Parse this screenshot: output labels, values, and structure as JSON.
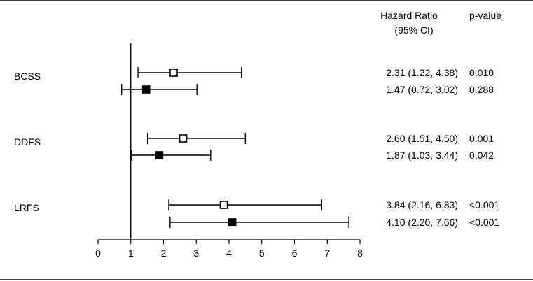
{
  "chart_data": {
    "type": "forest",
    "x_axis": {
      "ticks": [
        0,
        1,
        2,
        3,
        4,
        5,
        6,
        7,
        8
      ],
      "range": [
        0,
        8
      ],
      "reference_line": 1
    },
    "columns": {
      "hr_header_line1": "Hazard Ratio",
      "hr_header_line2": "(95% CI)",
      "p_header": "p-value"
    },
    "groups": [
      {
        "label": "BCSS",
        "rows": [
          {
            "marker": "open-square",
            "hr": 2.31,
            "ci_low": 1.22,
            "ci_high": 4.38,
            "hr_text": "2.31 (1.22, 4.38)",
            "p_text": "0.010"
          },
          {
            "marker": "filled-square",
            "hr": 1.47,
            "ci_low": 0.72,
            "ci_high": 3.02,
            "hr_text": "1.47 (0.72, 3.02)",
            "p_text": "0.288"
          }
        ]
      },
      {
        "label": "DDFS",
        "rows": [
          {
            "marker": "open-square",
            "hr": 2.6,
            "ci_low": 1.51,
            "ci_high": 4.5,
            "hr_text": "2.60 (1.51, 4.50)",
            "p_text": "0.001"
          },
          {
            "marker": "filled-square",
            "hr": 1.87,
            "ci_low": 1.03,
            "ci_high": 3.44,
            "hr_text": "1.87 (1.03, 3.44)",
            "p_text": "0.042"
          }
        ]
      },
      {
        "label": "LRFS",
        "rows": [
          {
            "marker": "open-square",
            "hr": 3.84,
            "ci_low": 2.16,
            "ci_high": 6.83,
            "hr_text": "3.84 (2.16, 6.83)",
            "p_text": "<0.001"
          },
          {
            "marker": "filled-square",
            "hr": 4.1,
            "ci_low": 2.2,
            "ci_high": 7.66,
            "hr_text": "4.10 (2.20, 7.66)",
            "p_text": "<0.001"
          }
        ]
      }
    ]
  }
}
